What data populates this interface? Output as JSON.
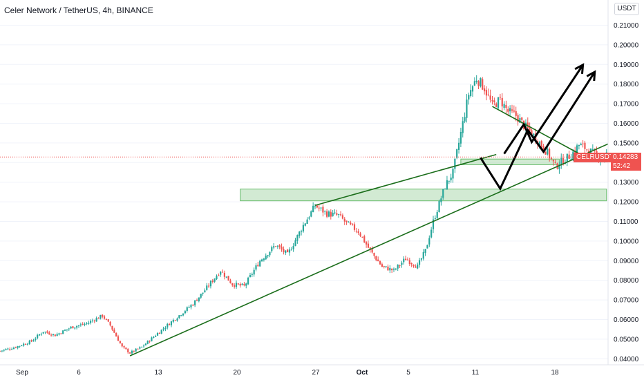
{
  "header": {
    "title": "Celer Network / TetherUS, 4h, BINANCE"
  },
  "currency_badge": "USDT",
  "symbol_tag": "CELRUSDT",
  "price_tag": {
    "price": "0.14283",
    "countdown": "52:42"
  },
  "colors": {
    "up": "#26a69a",
    "down": "#ef5350",
    "trendline": "#1b6e1b",
    "zone_fill": "#a5d6a7",
    "projection": "#000000",
    "axis_text": "#131722"
  },
  "chart_data": {
    "type": "candlestick",
    "interval": "4h",
    "ylim": [
      0.038,
      0.222
    ],
    "y_ticks": [
      "0.04000",
      "0.05000",
      "0.06000",
      "0.07000",
      "0.08000",
      "0.09000",
      "0.10000",
      "0.11000",
      "0.12000",
      "0.13000",
      "0.14000",
      "0.15000",
      "0.16000",
      "0.17000",
      "0.18000",
      "0.19000",
      "0.20000",
      "0.21000"
    ],
    "x_ticks": [
      "Sep",
      "6",
      "13",
      "20",
      "27",
      "Oct",
      "5",
      "11",
      "18"
    ],
    "close_path": [
      [
        0,
        0.044
      ],
      [
        4,
        0.046
      ],
      [
        8,
        0.049
      ],
      [
        11,
        0.054
      ],
      [
        14,
        0.052
      ],
      [
        18,
        0.056
      ],
      [
        22,
        0.058
      ],
      [
        26,
        0.062
      ],
      [
        28,
        0.057
      ],
      [
        31,
        0.046
      ],
      [
        33,
        0.043
      ],
      [
        36,
        0.046
      ],
      [
        40,
        0.053
      ],
      [
        43,
        0.058
      ],
      [
        46,
        0.063
      ],
      [
        49,
        0.068
      ],
      [
        52,
        0.075
      ],
      [
        56,
        0.085
      ],
      [
        59,
        0.078
      ],
      [
        62,
        0.077
      ],
      [
        66,
        0.09
      ],
      [
        70,
        0.098
      ],
      [
        73,
        0.093
      ],
      [
        77,
        0.108
      ],
      [
        80,
        0.118
      ],
      [
        83,
        0.114
      ],
      [
        86,
        0.113
      ],
      [
        88,
        0.109
      ],
      [
        91,
        0.105
      ],
      [
        94,
        0.095
      ],
      [
        97,
        0.087
      ],
      [
        100,
        0.085
      ],
      [
        103,
        0.091
      ],
      [
        106,
        0.087
      ],
      [
        108,
        0.095
      ],
      [
        110,
        0.11
      ],
      [
        113,
        0.128
      ],
      [
        115,
        0.135
      ],
      [
        117,
        0.155
      ],
      [
        119,
        0.175
      ],
      [
        121,
        0.183
      ],
      [
        123,
        0.178
      ],
      [
        125,
        0.169
      ],
      [
        127,
        0.172
      ],
      [
        129,
        0.166
      ],
      [
        131,
        0.164
      ],
      [
        133,
        0.159
      ],
      [
        135,
        0.155
      ],
      [
        137,
        0.15
      ],
      [
        139,
        0.145
      ],
      [
        141,
        0.138
      ],
      [
        143,
        0.141
      ],
      [
        145,
        0.144
      ],
      [
        147,
        0.149
      ],
      [
        149,
        0.147
      ],
      [
        151,
        0.144
      ],
      [
        153,
        0.142
      ],
      [
        155,
        0.147
      ],
      [
        157,
        0.143
      ]
    ],
    "zones": [
      {
        "x0": 61,
        "x1": 154,
        "y0": 0.1205,
        "y1": 0.1265
      },
      {
        "x0": 117,
        "x1": 142,
        "y0": 0.1389,
        "y1": 0.1418
      }
    ],
    "trendlines": [
      {
        "points": [
          [
            33,
            0.0415
          ],
          [
            169,
            0.1625
          ]
        ]
      },
      {
        "points": [
          [
            80,
            0.1182
          ],
          [
            126,
            0.1441
          ]
        ]
      },
      {
        "points": [
          [
            125,
            0.1686
          ],
          [
            148,
            0.1435
          ]
        ]
      }
    ],
    "projections": [
      {
        "points": [
          [
            128,
            0.1445
          ],
          [
            133,
            0.1595
          ],
          [
            135,
            0.1505
          ],
          [
            148,
            0.1898
          ]
        ]
      },
      {
        "points": [
          [
            122,
            0.1425
          ],
          [
            127,
            0.1267
          ],
          [
            134,
            0.1566
          ],
          [
            138,
            0.1455
          ],
          [
            151,
            0.1862
          ]
        ]
      }
    ],
    "last_price": 0.14283
  }
}
